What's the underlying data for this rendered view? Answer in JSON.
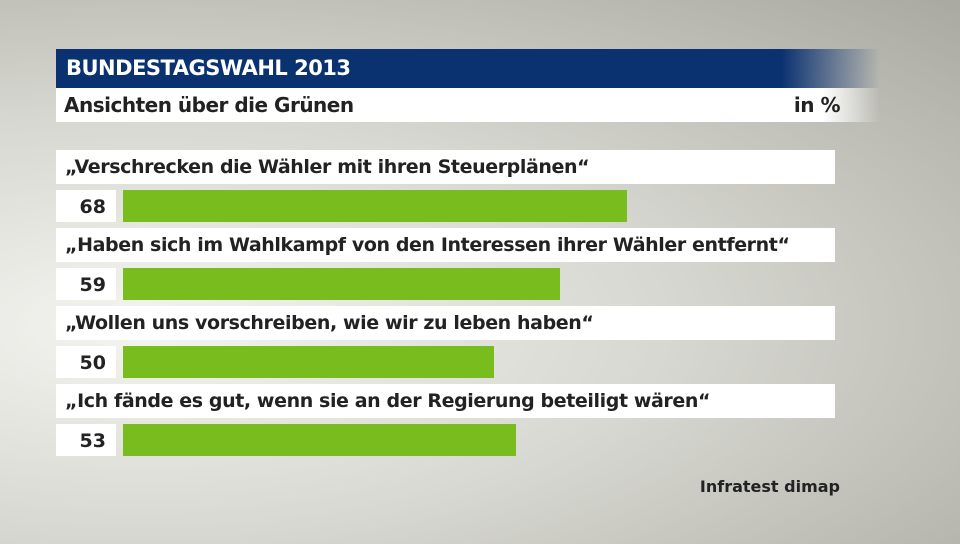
{
  "header": {
    "title": "BUNDESTAGSWAHL 2013",
    "subtitle": "Ansichten über die Grünen",
    "unit": "in %"
  },
  "chart_data": {
    "type": "bar",
    "orientation": "horizontal",
    "title": "Ansichten über die Grünen",
    "unit": "in %",
    "categories": [
      "„Verschrecken die Wähler mit ihren Steuerplänen“",
      "„Haben sich im Wahlkampf von den Interessen ihrer Wähler entfernt“",
      "„Wollen uns vorschreiben, wie wir zu leben haben“",
      "„Ich fände es gut, wenn sie an der Regierung beteiligt wären“"
    ],
    "values": [
      68,
      59,
      50,
      53
    ],
    "color": "#78bc1e",
    "xlim": [
      0,
      100
    ]
  },
  "source": "Infratest dimap"
}
